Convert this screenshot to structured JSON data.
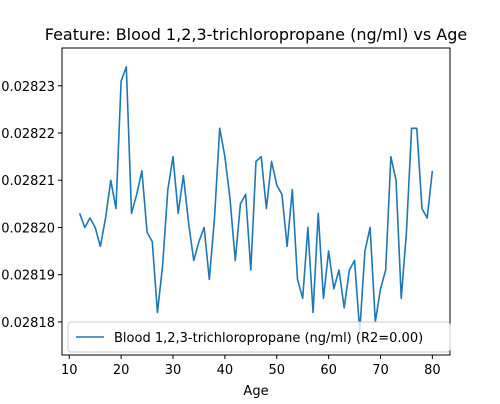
{
  "chart_data": {
    "type": "line",
    "title": "Feature: Blood 1,2,3-trichloropropane (ng/ml) vs Age",
    "xlabel": "Age",
    "ylabel": "",
    "xlim": [
      8.6,
      83.4
    ],
    "ylim": [
      0.028173,
      0.028238
    ],
    "x_ticks": [
      10,
      20,
      30,
      40,
      50,
      60,
      70,
      80
    ],
    "x_tick_labels": [
      "10",
      "20",
      "30",
      "40",
      "50",
      "60",
      "70",
      "80"
    ],
    "y_ticks": [
      0.02818,
      0.02819,
      0.0282,
      0.02821,
      0.02822,
      0.02823
    ],
    "y_tick_labels": [
      "0.02818",
      "0.02819",
      "0.02820",
      "0.02821",
      "0.02822",
      "0.02823"
    ],
    "grid": false,
    "legend_position": "lower-left",
    "series": [
      {
        "name": "Blood 1,2,3-trichloropropane (ng/ml) (R2=0.00)",
        "color": "#1f77b4",
        "x": [
          12,
          13,
          14,
          15,
          16,
          17,
          18,
          19,
          20,
          21,
          22,
          23,
          24,
          25,
          26,
          27,
          28,
          29,
          30,
          31,
          32,
          33,
          34,
          35,
          36,
          37,
          38,
          39,
          40,
          41,
          42,
          43,
          44,
          45,
          46,
          47,
          48,
          49,
          50,
          51,
          52,
          53,
          54,
          55,
          56,
          57,
          58,
          59,
          60,
          61,
          62,
          63,
          64,
          65,
          66,
          67,
          68,
          69,
          70,
          71,
          72,
          73,
          74,
          75,
          76,
          77,
          78,
          79,
          80
        ],
        "values": [
          0.028203,
          0.0282,
          0.028202,
          0.0282,
          0.028196,
          0.028202,
          0.02821,
          0.028204,
          0.028231,
          0.028234,
          0.028203,
          0.028207,
          0.028212,
          0.028199,
          0.028197,
          0.028182,
          0.028192,
          0.028208,
          0.028215,
          0.028203,
          0.028211,
          0.028201,
          0.028193,
          0.028197,
          0.0282,
          0.028189,
          0.028202,
          0.028221,
          0.028215,
          0.028206,
          0.028193,
          0.028205,
          0.028207,
          0.028191,
          0.028214,
          0.028215,
          0.028204,
          0.028214,
          0.028209,
          0.028207,
          0.028196,
          0.028208,
          0.028189,
          0.028185,
          0.0282,
          0.028182,
          0.028203,
          0.028185,
          0.028195,
          0.028187,
          0.028191,
          0.028183,
          0.028191,
          0.028193,
          0.028178,
          0.028195,
          0.0282,
          0.02818,
          0.028187,
          0.028191,
          0.028215,
          0.02821,
          0.028185,
          0.028199,
          0.028221,
          0.028221,
          0.028204,
          0.028202,
          0.028212
        ]
      }
    ]
  }
}
